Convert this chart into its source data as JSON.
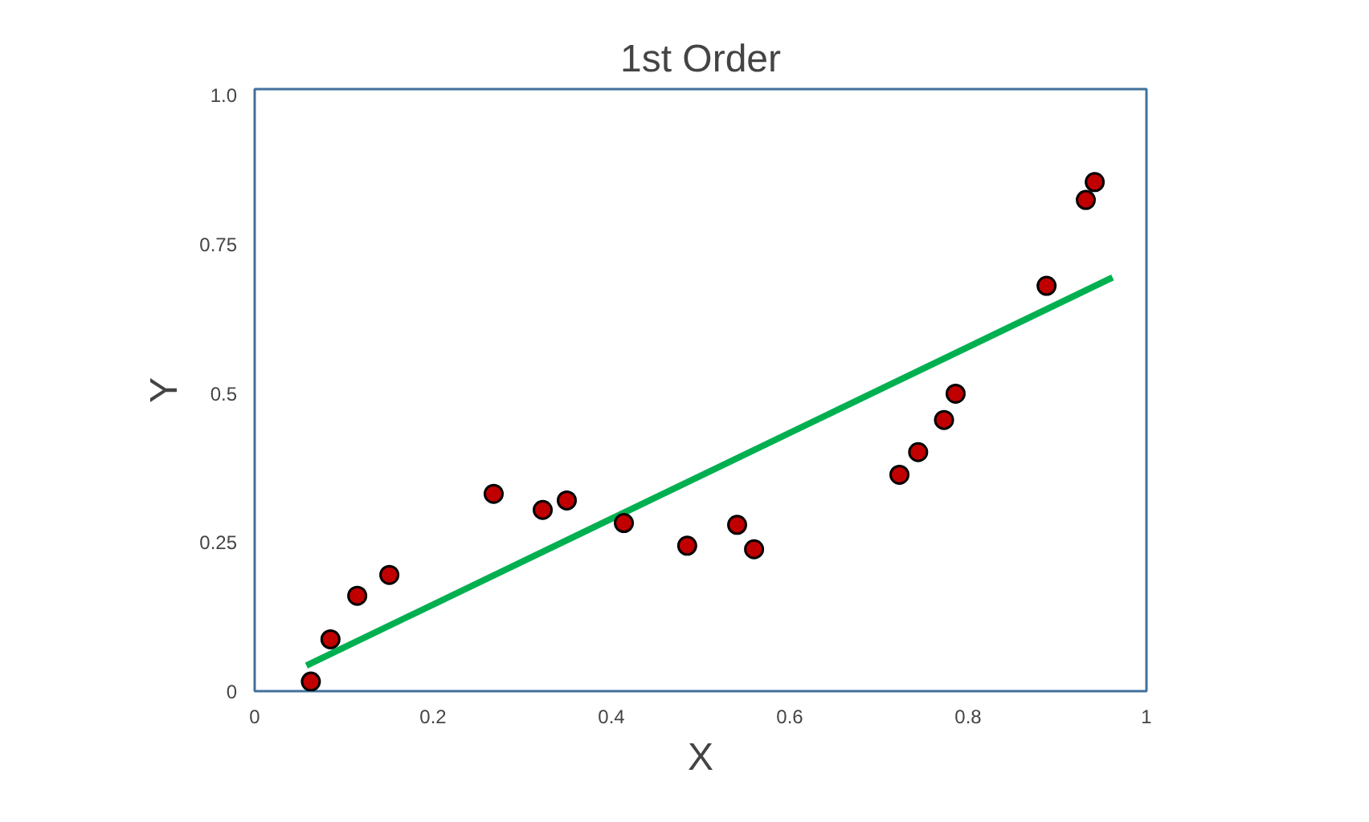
{
  "chart_data": {
    "type": "scatter",
    "title": "1st Order",
    "xlabel": "X",
    "ylabel": "Y",
    "xlim": [
      0,
      1
    ],
    "ylim": [
      0,
      1.01
    ],
    "xticks": [
      0,
      0.2,
      0.4,
      0.6,
      0.8,
      1
    ],
    "yticks": [
      0,
      0.25,
      0.5,
      0.75,
      {
        "value": 1.0,
        "label": "1.0"
      }
    ],
    "grid": false,
    "series": [
      {
        "marker": "circle",
        "color": "#c00000",
        "x": [
          0.063,
          0.085,
          0.115,
          0.151,
          0.268,
          0.323,
          0.35,
          0.414,
          0.485,
          0.541,
          0.56,
          0.723,
          0.744,
          0.773,
          0.786,
          0.888,
          0.932,
          0.942
        ],
        "values": [
          0.016,
          0.087,
          0.16,
          0.195,
          0.331,
          0.304,
          0.32,
          0.282,
          0.244,
          0.279,
          0.238,
          0.363,
          0.401,
          0.455,
          0.499,
          0.68,
          0.824,
          0.854
        ]
      },
      {
        "type": "line",
        "marker": "none",
        "color": "#00b050",
        "x": [
          0.058,
          0.962
        ],
        "values": [
          0.043,
          0.694
        ]
      }
    ]
  }
}
